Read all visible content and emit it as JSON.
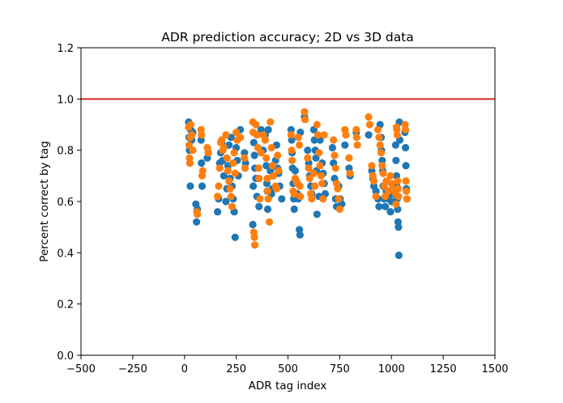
{
  "chart_data": {
    "type": "scatter",
    "title": "ADR prediction accuracy; 2D vs 3D data",
    "xlabel": "ADR tag index",
    "ylabel": "Percent correct by tag",
    "xlim": [
      -500,
      1500
    ],
    "ylim": [
      0.0,
      1.2
    ],
    "xticks": [
      -500,
      -250,
      0,
      250,
      500,
      750,
      1000,
      1250,
      1500
    ],
    "xtick_labels": [
      "−500",
      "−250",
      "0",
      "250",
      "500",
      "750",
      "1000",
      "1250",
      "1500"
    ],
    "yticks": [
      0.0,
      0.2,
      0.4,
      0.6,
      0.8,
      1.0,
      1.2
    ],
    "ytick_labels": [
      "0.0",
      "0.2",
      "0.4",
      "0.6",
      "0.8",
      "1.0",
      "1.2"
    ],
    "grid": false,
    "legend": "none",
    "reference_line": {
      "y": 1.0,
      "color": "#d62728"
    },
    "series": [
      {
        "color": "#1f77b4",
        "points": [
          [
            20,
            0.91
          ],
          [
            22,
            0.85
          ],
          [
            24,
            0.8
          ],
          [
            26,
            0.75
          ],
          [
            28,
            0.66
          ],
          [
            30,
            0.88
          ],
          [
            35,
            0.84
          ],
          [
            40,
            0.87
          ],
          [
            55,
            0.59
          ],
          [
            58,
            0.52
          ],
          [
            62,
            0.57
          ],
          [
            80,
            0.84
          ],
          [
            82,
            0.75
          ],
          [
            85,
            0.66
          ],
          [
            110,
            0.77
          ],
          [
            160,
            0.56
          ],
          [
            165,
            0.61
          ],
          [
            170,
            0.75
          ],
          [
            175,
            0.79
          ],
          [
            180,
            0.83
          ],
          [
            185,
            0.76
          ],
          [
            190,
            0.7
          ],
          [
            200,
            0.6
          ],
          [
            205,
            0.65
          ],
          [
            210,
            0.74
          ],
          [
            215,
            0.82
          ],
          [
            220,
            0.69
          ],
          [
            225,
            0.85
          ],
          [
            230,
            0.66
          ],
          [
            235,
            0.61
          ],
          [
            240,
            0.56
          ],
          [
            245,
            0.46
          ],
          [
            250,
            0.81
          ],
          [
            255,
            0.76
          ],
          [
            260,
            0.7
          ],
          [
            270,
            0.88
          ],
          [
            290,
            0.79
          ],
          [
            295,
            0.75
          ],
          [
            330,
            0.51
          ],
          [
            332,
            0.66
          ],
          [
            335,
            0.83
          ],
          [
            338,
            0.78
          ],
          [
            340,
            0.73
          ],
          [
            345,
            0.69
          ],
          [
            350,
            0.62
          ],
          [
            360,
            0.58
          ],
          [
            370,
            0.88
          ],
          [
            380,
            0.8
          ],
          [
            390,
            0.86
          ],
          [
            395,
            0.74
          ],
          [
            398,
            0.67
          ],
          [
            400,
            0.64
          ],
          [
            402,
            0.57
          ],
          [
            405,
            0.88
          ],
          [
            415,
            0.72
          ],
          [
            420,
            0.63
          ],
          [
            425,
            0.65
          ],
          [
            430,
            0.7
          ],
          [
            440,
            0.76
          ],
          [
            445,
            0.82
          ],
          [
            450,
            0.73
          ],
          [
            455,
            0.71
          ],
          [
            460,
            0.66
          ],
          [
            470,
            0.61
          ],
          [
            515,
            0.88
          ],
          [
            518,
            0.84
          ],
          [
            520,
            0.79
          ],
          [
            522,
            0.73
          ],
          [
            525,
            0.67
          ],
          [
            528,
            0.61
          ],
          [
            530,
            0.57
          ],
          [
            535,
            0.72
          ],
          [
            540,
            0.68
          ],
          [
            545,
            0.63
          ],
          [
            550,
            0.61
          ],
          [
            555,
            0.49
          ],
          [
            558,
            0.47
          ],
          [
            560,
            0.87
          ],
          [
            580,
            0.93
          ],
          [
            595,
            0.8
          ],
          [
            600,
            0.75
          ],
          [
            605,
            0.7
          ],
          [
            610,
            0.66
          ],
          [
            615,
            0.63
          ],
          [
            625,
            0.88
          ],
          [
            628,
            0.84
          ],
          [
            632,
            0.8
          ],
          [
            635,
            0.77
          ],
          [
            638,
            0.72
          ],
          [
            640,
            0.55
          ],
          [
            650,
            0.62
          ],
          [
            655,
            0.84
          ],
          [
            665,
            0.75
          ],
          [
            670,
            0.71
          ],
          [
            675,
            0.67
          ],
          [
            680,
            0.63
          ],
          [
            715,
            0.81
          ],
          [
            720,
            0.75
          ],
          [
            725,
            0.69
          ],
          [
            730,
            0.61
          ],
          [
            735,
            0.58
          ],
          [
            745,
            0.66
          ],
          [
            752,
            0.61
          ],
          [
            760,
            0.59
          ],
          [
            775,
            0.82
          ],
          [
            795,
            0.73
          ],
          [
            800,
            0.7
          ],
          [
            830,
            0.87
          ],
          [
            890,
            0.86
          ],
          [
            905,
            0.72
          ],
          [
            910,
            0.69
          ],
          [
            915,
            0.66
          ],
          [
            925,
            0.64
          ],
          [
            935,
            0.61
          ],
          [
            940,
            0.58
          ],
          [
            945,
            0.9
          ],
          [
            950,
            0.85
          ],
          [
            952,
            0.8
          ],
          [
            955,
            0.76
          ],
          [
            958,
            0.72
          ],
          [
            960,
            0.66
          ],
          [
            965,
            0.61
          ],
          [
            970,
            0.58
          ],
          [
            975,
            0.64
          ],
          [
            985,
            0.61
          ],
          [
            995,
            0.56
          ],
          [
            1000,
            0.6
          ],
          [
            1005,
            0.63
          ],
          [
            1020,
            0.82
          ],
          [
            1022,
            0.76
          ],
          [
            1024,
            0.7
          ],
          [
            1026,
            0.66
          ],
          [
            1028,
            0.61
          ],
          [
            1030,
            0.57
          ],
          [
            1032,
            0.52
          ],
          [
            1034,
            0.5
          ],
          [
            1036,
            0.39
          ],
          [
            1038,
            0.91
          ],
          [
            1040,
            0.84
          ],
          [
            1065,
            0.87
          ],
          [
            1068,
            0.81
          ],
          [
            1070,
            0.74
          ],
          [
            1072,
            0.65
          ],
          [
            1075,
            0.61
          ]
        ]
      },
      {
        "color": "#ff7f0e",
        "points": [
          [
            20,
            0.89
          ],
          [
            22,
            0.82
          ],
          [
            24,
            0.77
          ],
          [
            26,
            0.75
          ],
          [
            28,
            0.85
          ],
          [
            30,
            0.9
          ],
          [
            35,
            0.86
          ],
          [
            40,
            0.8
          ],
          [
            60,
            0.56
          ],
          [
            62,
            0.55
          ],
          [
            80,
            0.88
          ],
          [
            82,
            0.86
          ],
          [
            85,
            0.7
          ],
          [
            88,
            0.72
          ],
          [
            110,
            0.81
          ],
          [
            115,
            0.79
          ],
          [
            160,
            0.62
          ],
          [
            165,
            0.66
          ],
          [
            170,
            0.73
          ],
          [
            175,
            0.83
          ],
          [
            180,
            0.84
          ],
          [
            185,
            0.8
          ],
          [
            190,
            0.81
          ],
          [
            200,
            0.86
          ],
          [
            205,
            0.77
          ],
          [
            210,
            0.72
          ],
          [
            215,
            0.68
          ],
          [
            220,
            0.65
          ],
          [
            225,
            0.62
          ],
          [
            230,
            0.58
          ],
          [
            235,
            0.75
          ],
          [
            240,
            0.79
          ],
          [
            245,
            0.71
          ],
          [
            250,
            0.87
          ],
          [
            255,
            0.84
          ],
          [
            270,
            0.85
          ],
          [
            290,
            0.77
          ],
          [
            292,
            0.73
          ],
          [
            330,
            0.91
          ],
          [
            332,
            0.87
          ],
          [
            335,
            0.48
          ],
          [
            338,
            0.46
          ],
          [
            340,
            0.43
          ],
          [
            345,
            0.9
          ],
          [
            350,
            0.86
          ],
          [
            355,
            0.81
          ],
          [
            358,
            0.73
          ],
          [
            360,
            0.69
          ],
          [
            365,
            0.61
          ],
          [
            370,
            0.79
          ],
          [
            380,
            0.86
          ],
          [
            390,
            0.84
          ],
          [
            395,
            0.77
          ],
          [
            400,
            0.69
          ],
          [
            402,
            0.64
          ],
          [
            405,
            0.61
          ],
          [
            410,
            0.52
          ],
          [
            415,
            0.91
          ],
          [
            420,
            0.81
          ],
          [
            425,
            0.74
          ],
          [
            430,
            0.7
          ],
          [
            440,
            0.66
          ],
          [
            445,
            0.65
          ],
          [
            450,
            0.78
          ],
          [
            455,
            0.72
          ],
          [
            515,
            0.86
          ],
          [
            518,
            0.8
          ],
          [
            520,
            0.76
          ],
          [
            525,
            0.64
          ],
          [
            530,
            0.63
          ],
          [
            535,
            0.69
          ],
          [
            540,
            0.68
          ],
          [
            545,
            0.67
          ],
          [
            550,
            0.85
          ],
          [
            555,
            0.82
          ],
          [
            558,
            0.66
          ],
          [
            560,
            0.62
          ],
          [
            580,
            0.95
          ],
          [
            582,
            0.92
          ],
          [
            595,
            0.77
          ],
          [
            600,
            0.73
          ],
          [
            605,
            0.69
          ],
          [
            610,
            0.63
          ],
          [
            615,
            0.61
          ],
          [
            625,
            0.71
          ],
          [
            630,
            0.66
          ],
          [
            640,
            0.9
          ],
          [
            645,
            0.86
          ],
          [
            650,
            0.79
          ],
          [
            655,
            0.74
          ],
          [
            660,
            0.7
          ],
          [
            665,
            0.67
          ],
          [
            670,
            0.61
          ],
          [
            675,
            0.86
          ],
          [
            720,
            0.84
          ],
          [
            725,
            0.78
          ],
          [
            730,
            0.73
          ],
          [
            735,
            0.67
          ],
          [
            740,
            0.65
          ],
          [
            745,
            0.61
          ],
          [
            750,
            0.57
          ],
          [
            775,
            0.88
          ],
          [
            780,
            0.86
          ],
          [
            795,
            0.77
          ],
          [
            800,
            0.71
          ],
          [
            830,
            0.88
          ],
          [
            832,
            0.85
          ],
          [
            835,
            0.82
          ],
          [
            890,
            0.93
          ],
          [
            895,
            0.9
          ],
          [
            905,
            0.74
          ],
          [
            910,
            0.7
          ],
          [
            915,
            0.68
          ],
          [
            925,
            0.62
          ],
          [
            935,
            0.88
          ],
          [
            940,
            0.85
          ],
          [
            945,
            0.82
          ],
          [
            950,
            0.79
          ],
          [
            955,
            0.74
          ],
          [
            960,
            0.71
          ],
          [
            965,
            0.66
          ],
          [
            970,
            0.62
          ],
          [
            975,
            0.68
          ],
          [
            985,
            0.64
          ],
          [
            995,
            0.7
          ],
          [
            1000,
            0.67
          ],
          [
            1005,
            0.65
          ],
          [
            1020,
            0.63
          ],
          [
            1022,
            0.59
          ],
          [
            1024,
            0.89
          ],
          [
            1026,
            0.88
          ],
          [
            1028,
            0.86
          ],
          [
            1030,
            0.68
          ],
          [
            1032,
            0.65
          ],
          [
            1034,
            0.62
          ],
          [
            1065,
            0.9
          ],
          [
            1068,
            0.88
          ],
          [
            1070,
            0.68
          ],
          [
            1072,
            0.64
          ],
          [
            1075,
            0.61
          ]
        ]
      }
    ]
  }
}
